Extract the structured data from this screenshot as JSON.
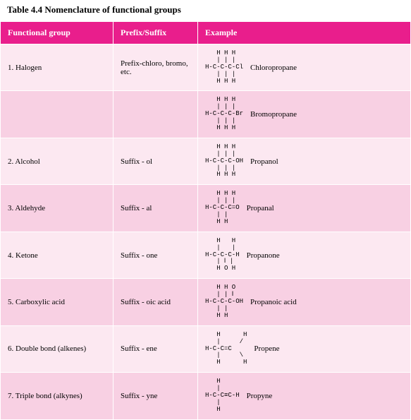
{
  "title": "Table 4.4 Nomenclature of functional groups",
  "headers": {
    "c1": "Functional group",
    "c2": "Prefix/Suffix",
    "c3": "Example"
  },
  "rows": [
    {
      "group": "1. Halogen",
      "affix": "Prefix-chloro, bromo, etc.",
      "struct": "   H H H\n   | | |\nH-C-C-C-Cl\n   | | |\n   H H H",
      "example": "Chloropropane",
      "cls": "odd"
    },
    {
      "group": "",
      "affix": "",
      "struct": "   H H H\n   | | |\nH-C-C-C-Br\n   | | |\n   H H H",
      "example": "Bromopropane",
      "cls": "even"
    },
    {
      "group": "2. Alcohol",
      "affix": "Suffix - ol",
      "struct": "   H H H\n   | | |\nH-C-C-C-OH\n   | | |\n   H H H",
      "example": "Propanol",
      "cls": "odd"
    },
    {
      "group": "3. Aldehyde",
      "affix": "Suffix - al",
      "struct": "   H H H\n   | | |\nH-C-C-C=O\n   | |\n   H H",
      "example": "Propanal",
      "cls": "even"
    },
    {
      "group": "4. Ketone",
      "affix": "Suffix - one",
      "struct": "   H   H\n   |   |\nH-C-C-C-H\n   | ‖ |\n   H O H",
      "example": "Propanone",
      "cls": "odd"
    },
    {
      "group": "5. Carboxylic acid",
      "affix": "Suffix - oic acid",
      "struct": "   H H O\n   | | ‖\nH-C-C-C-OH\n   | |\n   H H",
      "example": "Propanoic acid",
      "cls": "even"
    },
    {
      "group": "6. Double bond (alkenes)",
      "affix": "Suffix - ene",
      "struct": "   H      H\n   |     /\nH-C-C=C\n   |     \\\n   H      H",
      "example": "Propene",
      "cls": "odd"
    },
    {
      "group": "7. Triple bond (alkynes)",
      "affix": "Suffix - yne",
      "struct": "   H\n   |\nH-C-C≡C-H\n   |\n   H",
      "example": "Propyne",
      "cls": "even"
    }
  ]
}
